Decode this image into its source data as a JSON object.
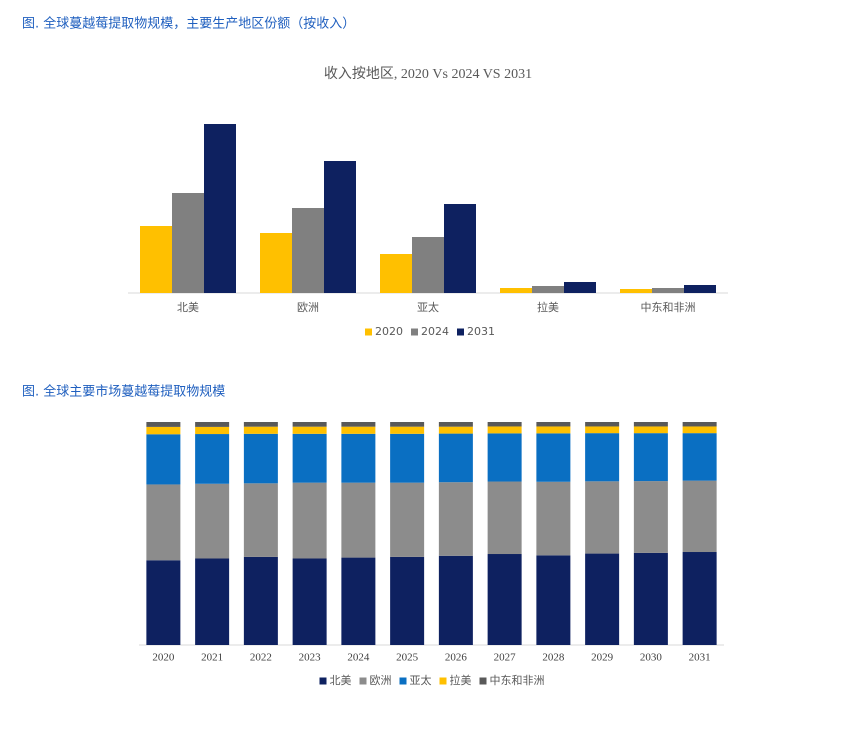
{
  "chart_data": [
    {
      "type": "bar",
      "caption": "图. 全球蔓越莓提取物规模，主要生产地区份额（按收入）",
      "title": "收入按地区, 2020 Vs 2024 VS 2031",
      "categories": [
        "北美",
        "欧洲",
        "亚太",
        "拉美",
        "中东和非洲"
      ],
      "series": [
        {
          "name": "2020",
          "color": "#ffc000",
          "values": [
            67,
            60,
            39,
            5,
            4
          ]
        },
        {
          "name": "2024",
          "color": "#808080",
          "values": [
            100,
            85,
            56,
            7,
            5
          ]
        },
        {
          "name": "2031",
          "color": "#0e2160",
          "values": [
            169,
            132,
            89,
            11,
            8
          ]
        }
      ]
    },
    {
      "type": "stacked_bar",
      "caption": "图. 全球主要市场蔓越莓提取物规模",
      "categories": [
        "2020",
        "2021",
        "2022",
        "2023",
        "2024",
        "2025",
        "2026",
        "2027",
        "2028",
        "2029",
        "2030",
        "2031"
      ],
      "series": [
        {
          "name": "北美",
          "color": "#0e2160",
          "values": [
            38,
            38.8,
            39.5,
            38.8,
            39.2,
            39.5,
            40,
            40.8,
            40.2,
            41,
            41.3,
            41.7
          ]
        },
        {
          "name": "欧洲",
          "color": "#8c8c8c",
          "values": [
            34,
            33.5,
            33,
            34,
            33.6,
            33.3,
            33,
            32.5,
            33,
            32.4,
            32.2,
            32
          ]
        },
        {
          "name": "亚太",
          "color": "#0a6fc2",
          "values": [
            22.5,
            22.3,
            22.2,
            21.9,
            21.9,
            21.9,
            21.8,
            21.6,
            21.7,
            21.6,
            21.5,
            21.3
          ]
        },
        {
          "name": "拉美",
          "color": "#ffc000",
          "values": [
            3.3,
            3.2,
            3.2,
            3.2,
            3.2,
            3.2,
            3.1,
            3.1,
            3.1,
            3,
            3,
            3
          ]
        },
        {
          "name": "中东和非洲",
          "color": "#595959",
          "values": [
            2.2,
            2.2,
            2.1,
            2.1,
            2.1,
            2.1,
            2.1,
            2,
            2,
            2,
            2,
            2
          ]
        }
      ]
    }
  ]
}
